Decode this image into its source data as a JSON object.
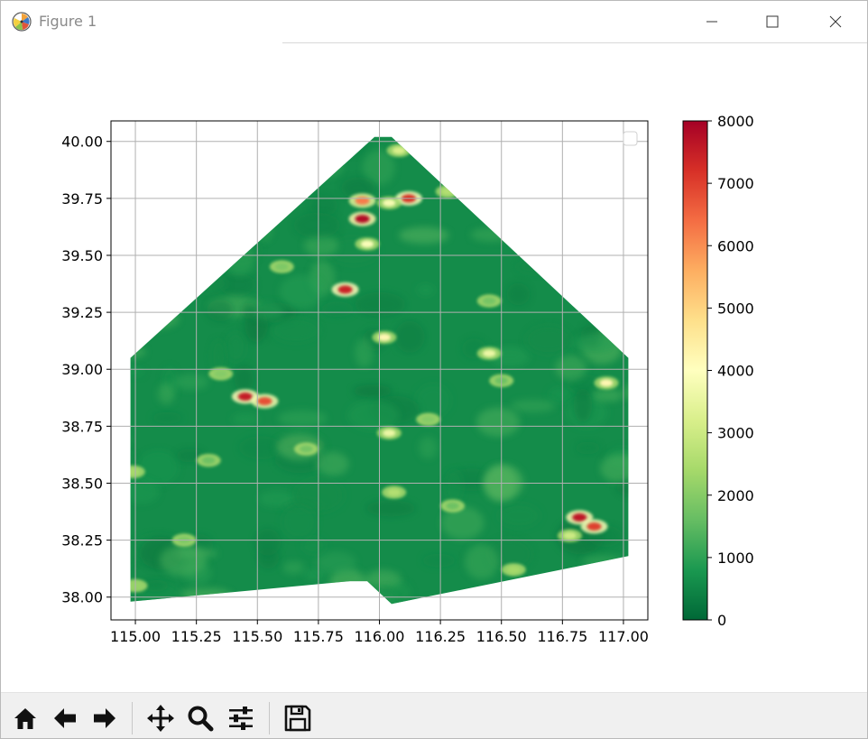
{
  "window": {
    "title": "Figure 1",
    "icons": {
      "app": "matplotlib-icon",
      "minimize": "minimize-icon",
      "maximize": "maximize-icon",
      "close": "close-icon"
    }
  },
  "toolbar": {
    "buttons": [
      {
        "name": "home-button",
        "icon": "home-icon"
      },
      {
        "name": "back-button",
        "icon": "arrow-left-icon"
      },
      {
        "name": "forward-button",
        "icon": "arrow-right-icon"
      },
      {
        "name": "pan-button",
        "icon": "move-icon"
      },
      {
        "name": "zoom-button",
        "icon": "magnifier-icon"
      },
      {
        "name": "configure-subplots-button",
        "icon": "sliders-icon"
      },
      {
        "name": "save-button",
        "icon": "floppy-disk-icon"
      }
    ]
  },
  "chart_data": {
    "type": "heatmap",
    "title": "",
    "xlabel": "",
    "ylabel": "",
    "xlim": [
      114.9,
      117.1
    ],
    "ylim": [
      37.9,
      40.09
    ],
    "xticks": [
      115.0,
      115.25,
      115.5,
      115.75,
      116.0,
      116.25,
      116.5,
      116.75,
      117.0
    ],
    "xtick_labels": [
      "115.00",
      "115.25",
      "115.50",
      "115.75",
      "116.00",
      "116.25",
      "116.50",
      "116.75",
      "117.00"
    ],
    "yticks": [
      38.0,
      38.25,
      38.5,
      38.75,
      39.0,
      39.25,
      39.5,
      39.75,
      40.0
    ],
    "ytick_labels": [
      "38.00",
      "38.25",
      "38.50",
      "38.75",
      "39.00",
      "39.25",
      "39.50",
      "39.75",
      "40.00"
    ],
    "grid": true,
    "legend": "top-right (empty)",
    "colormap": "RdYlGn_r",
    "colorbar": {
      "min": 0,
      "max": 8000,
      "ticks": [
        0,
        1000,
        2000,
        3000,
        4000,
        5000,
        6000,
        7000,
        8000
      ],
      "tick_labels": [
        "0",
        "1000",
        "2000",
        "3000",
        "4000",
        "5000",
        "6000",
        "7000",
        "8000"
      ],
      "colors": [
        "#006837",
        "#1a9850",
        "#66bd63",
        "#a6d96a",
        "#d9ef8b",
        "#ffffbf",
        "#fee08b",
        "#fdae61",
        "#f46d43",
        "#d73027",
        "#a50026"
      ]
    },
    "region_outline": [
      [
        114.98,
        39.05
      ],
      [
        115.98,
        40.02
      ],
      [
        116.05,
        40.02
      ],
      [
        117.02,
        39.05
      ],
      [
        117.02,
        38.18
      ],
      [
        116.05,
        37.97
      ],
      [
        115.95,
        38.07
      ],
      [
        115.88,
        38.07
      ],
      [
        114.98,
        37.98
      ]
    ],
    "background_value": 600,
    "hotspots": [
      {
        "x": 115.45,
        "y": 38.88,
        "value": 7500
      },
      {
        "x": 115.53,
        "y": 38.86,
        "value": 6800
      },
      {
        "x": 115.86,
        "y": 39.35,
        "value": 7400
      },
      {
        "x": 115.93,
        "y": 39.66,
        "value": 7800
      },
      {
        "x": 116.12,
        "y": 39.75,
        "value": 7200
      },
      {
        "x": 115.93,
        "y": 39.74,
        "value": 6200
      },
      {
        "x": 116.08,
        "y": 39.96,
        "value": 3200
      },
      {
        "x": 116.04,
        "y": 39.73,
        "value": 3800
      },
      {
        "x": 116.28,
        "y": 39.78,
        "value": 2600
      },
      {
        "x": 115.95,
        "y": 39.55,
        "value": 3900
      },
      {
        "x": 116.02,
        "y": 39.14,
        "value": 4200
      },
      {
        "x": 116.04,
        "y": 38.72,
        "value": 3600
      },
      {
        "x": 116.06,
        "y": 38.46,
        "value": 2600
      },
      {
        "x": 116.82,
        "y": 38.35,
        "value": 7600
      },
      {
        "x": 116.88,
        "y": 38.31,
        "value": 7000
      },
      {
        "x": 116.93,
        "y": 38.94,
        "value": 4200
      },
      {
        "x": 116.78,
        "y": 38.27,
        "value": 3000
      },
      {
        "x": 114.99,
        "y": 38.55,
        "value": 2400
      },
      {
        "x": 115.0,
        "y": 38.05,
        "value": 2200
      },
      {
        "x": 115.35,
        "y": 38.98,
        "value": 2000
      },
      {
        "x": 115.6,
        "y": 39.45,
        "value": 1900
      },
      {
        "x": 116.2,
        "y": 38.78,
        "value": 2000
      },
      {
        "x": 116.45,
        "y": 39.3,
        "value": 1800
      },
      {
        "x": 116.5,
        "y": 38.95,
        "value": 1700
      },
      {
        "x": 115.2,
        "y": 38.25,
        "value": 1900
      },
      {
        "x": 116.45,
        "y": 39.07,
        "value": 3600
      },
      {
        "x": 116.55,
        "y": 38.12,
        "value": 2400
      },
      {
        "x": 115.7,
        "y": 38.65,
        "value": 1800
      },
      {
        "x": 116.3,
        "y": 38.4,
        "value": 1700
      },
      {
        "x": 115.3,
        "y": 38.6,
        "value": 1700
      }
    ]
  }
}
